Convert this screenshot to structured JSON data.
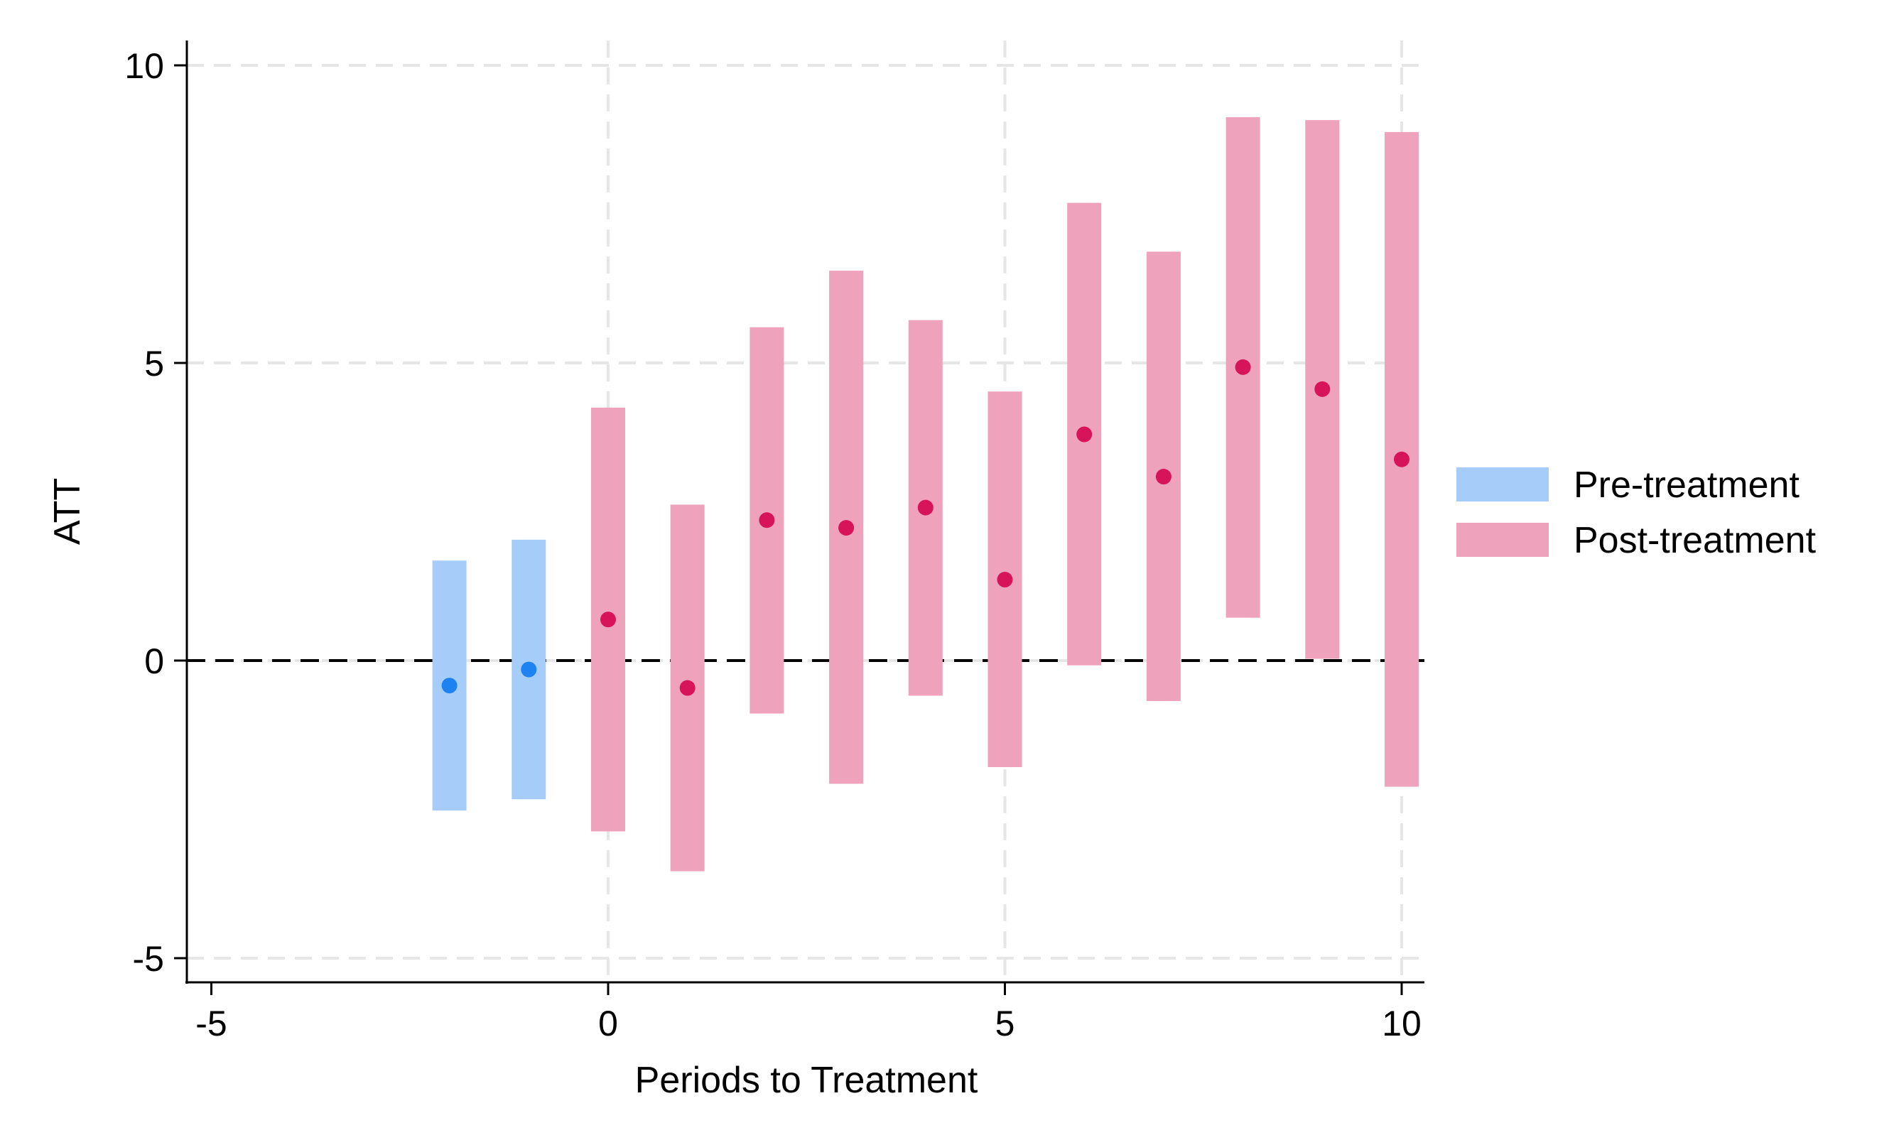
{
  "chart_data": {
    "type": "errorbar",
    "title": "",
    "xlabel": "Periods to Treatment",
    "ylabel": "ATT",
    "xlim": [
      -5.3,
      10.3
    ],
    "ylim": [
      -5.4,
      10.4
    ],
    "xticks": [
      -5,
      0,
      5,
      10
    ],
    "yticks": [
      -5,
      0,
      5,
      10
    ],
    "xtick_labels": [
      "-5",
      "0",
      "5",
      "10"
    ],
    "ytick_labels": [
      "-5",
      "0",
      "5",
      "10"
    ],
    "grid": true,
    "zero_reference_line": 0,
    "legend_position": "right",
    "series": [
      {
        "name": "Pre-treatment",
        "bar_color": "#a6cdf9",
        "point_color": "#1e82f0",
        "x": [
          -2,
          -1
        ],
        "estimate": [
          -0.42,
          -0.15
        ],
        "ci_low": [
          -2.52,
          -2.33
        ],
        "ci_high": [
          1.68,
          2.03
        ]
      },
      {
        "name": "Post-treatment",
        "bar_color": "#eea2bc",
        "point_color": "#d7145a",
        "x": [
          0,
          1,
          2,
          3,
          4,
          5,
          6,
          7,
          8,
          9,
          10
        ],
        "estimate": [
          0.69,
          -0.46,
          2.36,
          2.23,
          2.57,
          1.36,
          3.8,
          3.09,
          4.93,
          4.56,
          3.38
        ],
        "ci_low": [
          -2.87,
          -3.54,
          -0.89,
          -2.07,
          -0.59,
          -1.79,
          -0.08,
          -0.68,
          0.72,
          0.03,
          -2.12
        ],
        "ci_high": [
          4.25,
          2.62,
          5.6,
          6.55,
          5.72,
          4.52,
          7.69,
          6.87,
          9.13,
          9.08,
          8.88
        ]
      }
    ]
  }
}
